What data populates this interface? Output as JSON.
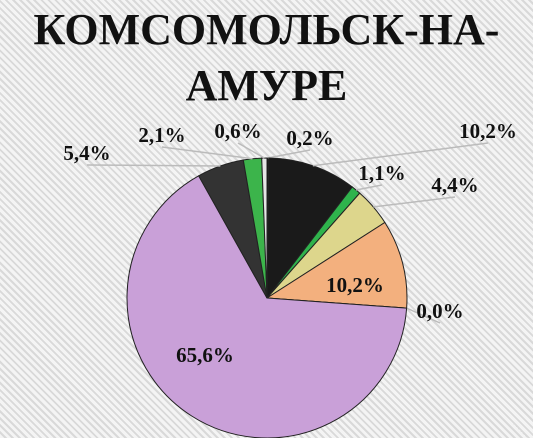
{
  "chart_data": {
    "type": "pie",
    "title": "КОМСОМОЛЬСК-НА-АМУРЕ",
    "values": [
      0.2,
      10.2,
      1.1,
      4.4,
      10.2,
      0.0,
      65.6,
      5.4,
      2.1,
      0.6
    ],
    "value_labels": [
      "0,2%",
      "10,2%",
      "1,1%",
      "4,4%",
      "10,2%",
      "0,0%",
      "65,6%",
      "5,4%",
      "2,1%",
      "0,6%"
    ],
    "colors": [
      "#111111",
      "#1a1a1a",
      "#2fb34c",
      "#ddd68c",
      "#f3b07e",
      "#cccccc",
      "#c9a0d8",
      "#333333",
      "#3cb44b",
      "#e6e6e6"
    ]
  }
}
